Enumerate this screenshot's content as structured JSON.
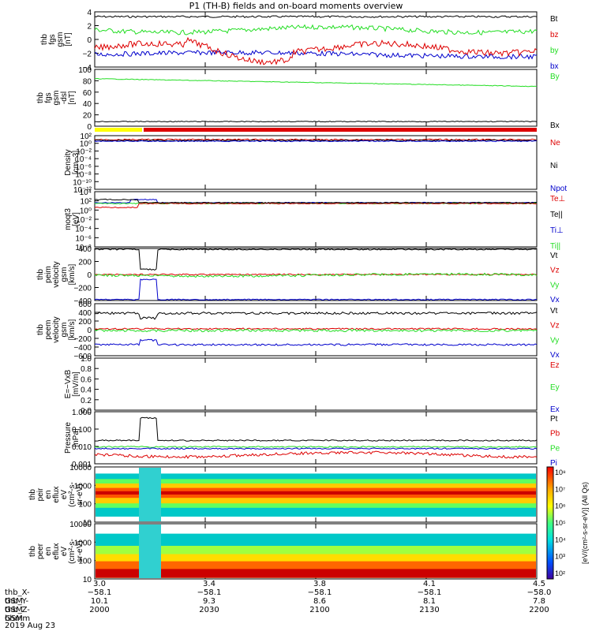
{
  "title": "P1 (TH-B) fields and on-board moments overview",
  "colors": {
    "black": "#000000",
    "red": "#dd0000",
    "green": "#22dd22",
    "blue": "#0000cc",
    "yellow": "#ffff00"
  },
  "chart_data": [
    {
      "type": "line",
      "panel": "fgs_small",
      "ylabel": [
        "thb",
        "fgs",
        "gsm",
        "[nT]"
      ],
      "ylim": [
        -4,
        4
      ],
      "yticks": [
        "4",
        "2",
        "0",
        "−2",
        "−4"
      ],
      "series": [
        {
          "name": "Bt",
          "color": "black",
          "level": 3.3
        },
        {
          "name": "bz",
          "color": "red",
          "level": -1.3
        },
        {
          "name": "by",
          "color": "green",
          "level": 1.4
        },
        {
          "name": "bx",
          "color": "blue",
          "level": -2.2
        }
      ]
    },
    {
      "type": "line",
      "panel": "fgs_large",
      "ylabel": [
        "thb",
        "fgs",
        "gsm",
        "-dsl",
        "[nT]"
      ],
      "ylim": [
        -10,
        100
      ],
      "yticks": [
        "100",
        "80",
        "60",
        "40",
        "20",
        "0"
      ],
      "series": [
        {
          "name": "By",
          "color": "green",
          "start": 82,
          "end": 67
        },
        {
          "name": "Bx",
          "color": "black",
          "level": -1
        }
      ]
    },
    {
      "type": "line",
      "panel": "density",
      "ylabel": [
        "Density",
        "[cm−3]"
      ],
      "yticks": [
        "10²",
        "10⁰",
        "10⁻²",
        "10⁻⁴",
        "10⁻⁶",
        "10⁻⁸",
        "10⁻¹⁰",
        "10⁻¹²"
      ],
      "series": [
        {
          "name": "Ne",
          "color": "red"
        },
        {
          "name": "Ni",
          "color": "black"
        },
        {
          "name": "Npot",
          "color": "blue"
        }
      ]
    },
    {
      "type": "line",
      "panel": "temperature",
      "ylabel": [
        "moqt3",
        "[eV]"
      ],
      "yticks": [
        "10⁴",
        "10²",
        "10⁰",
        "10⁻²",
        "10⁻⁴",
        "10⁻⁶",
        "10⁻⁸"
      ],
      "series": [
        {
          "name": "Te⊥",
          "color": "red"
        },
        {
          "name": "Te||",
          "color": "black"
        },
        {
          "name": "Ti⊥",
          "color": "blue"
        },
        {
          "name": "Ti||",
          "color": "green"
        }
      ]
    },
    {
      "type": "line",
      "panel": "peim_velocity",
      "ylabel": [
        "thb",
        "peim",
        "velocity",
        "gsm",
        "[km/s]"
      ],
      "ylim": [
        -400,
        400
      ],
      "yticks": [
        "400",
        "200",
        "0",
        "−200",
        "−400"
      ],
      "series": [
        {
          "name": "Vt",
          "color": "black",
          "level": 385
        },
        {
          "name": "Vz",
          "color": "red",
          "level": 0
        },
        {
          "name": "Vy",
          "color": "green",
          "level": -10
        },
        {
          "name": "Vx",
          "color": "blue",
          "level": -385
        }
      ]
    },
    {
      "type": "line",
      "panel": "peem_velocity",
      "ylabel": [
        "thb",
        "peem",
        "velocity",
        "gsm",
        "[km/s]"
      ],
      "ylim": [
        -600,
        600
      ],
      "yticks": [
        "600",
        "400",
        "200",
        "0",
        "−200",
        "−400",
        "−600"
      ],
      "series": [
        {
          "name": "Vt",
          "color": "black",
          "level": 380
        },
        {
          "name": "Vz",
          "color": "red",
          "level": 20
        },
        {
          "name": "Vy",
          "color": "green",
          "level": -20
        },
        {
          "name": "Vx",
          "color": "blue",
          "level": -345
        }
      ]
    },
    {
      "type": "line",
      "panel": "efield",
      "ylabel": [
        "E=−VxB",
        "[mV/m]"
      ],
      "ylim": [
        0,
        1
      ],
      "yticks": [
        "1.0",
        "0.8",
        "0.6",
        "0.4",
        "0.2",
        "0.0"
      ],
      "series": [
        {
          "name": "Ez",
          "color": "red"
        },
        {
          "name": "Ey",
          "color": "green"
        },
        {
          "name": "Ex",
          "color": "blue"
        }
      ]
    },
    {
      "type": "line",
      "panel": "pressure",
      "ylabel": [
        "Pressure",
        "[nPa]"
      ],
      "yticks": [
        "1.000",
        "0.100",
        "0.010",
        "0.001"
      ],
      "series": [
        {
          "name": "Pt",
          "color": "black",
          "level": 0.022
        },
        {
          "name": "Pb",
          "color": "red",
          "level": 0.0035
        },
        {
          "name": "Pe",
          "color": "green",
          "level": 0.0095
        },
        {
          "name": "Pi",
          "color": "blue",
          "level": 0.0075
        }
      ]
    },
    {
      "type": "heatmap",
      "panel": "peir",
      "ylabel": [
        "thb",
        "peir",
        "en",
        "eflux",
        "eV",
        "(cm²-s-",
        "sr-eV)"
      ],
      "yticks": [
        "10000",
        "1000",
        "100",
        "10"
      ]
    },
    {
      "type": "heatmap",
      "panel": "peer",
      "ylabel": [
        "thb",
        "peer",
        "en",
        "eflux",
        "eV",
        "(cm²-s-",
        "sr-eV)"
      ],
      "yticks": [
        "10000",
        "1000",
        "100",
        "10"
      ]
    }
  ],
  "colorbar": {
    "label": "[eV/(cm²-s-sr-eV)] (All Qs)",
    "ticks": [
      "10⁸",
      "10⁷",
      "10⁶",
      "10⁵",
      "10⁴",
      "10³",
      "10²"
    ]
  },
  "xaxis": {
    "ticks": [
      {
        "r": "3.0",
        "x": "−58.1",
        "y": "10.1",
        "hhmm": "2000"
      },
      {
        "r": "3.4",
        "x": "−58.1",
        "y": "9.3",
        "hhmm": "2030"
      },
      {
        "r": "3.8",
        "x": "−58.1",
        "y": "8.6",
        "hhmm": "2100"
      },
      {
        "r": "4.1",
        "x": "−58.1",
        "y": "8.1",
        "hhmm": "2130"
      },
      {
        "r": "4.5",
        "x": "−58.0",
        "y": "7.8",
        "hhmm": "2200"
      }
    ]
  },
  "footer": {
    "labels": [
      "thb_X-GSM",
      "thb_Y-GSM",
      "thb_Z-GSM",
      "hhmm"
    ],
    "date": "2019 Aug 23"
  }
}
